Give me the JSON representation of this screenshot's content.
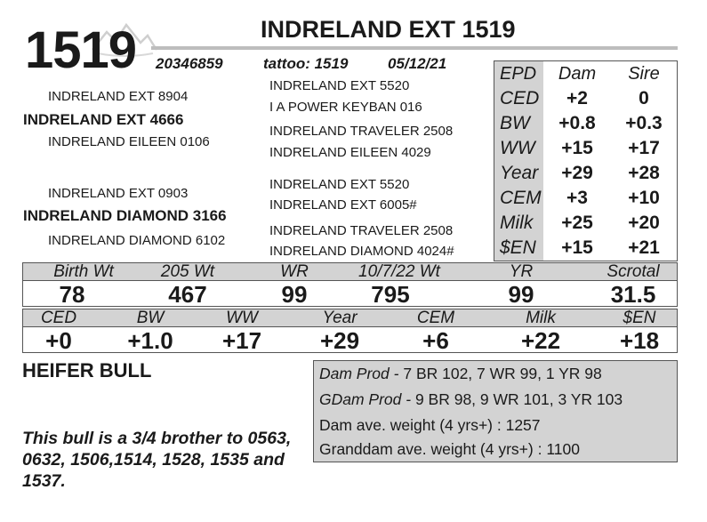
{
  "header": {
    "lot": "1519",
    "title": "INDRELAND EXT 1519",
    "registration": "20346859",
    "tattoo": "tattoo: 1519",
    "birth_date": "05/12/21"
  },
  "pedigree": {
    "sire": "INDRELAND EXT 4666",
    "sire_sire": "INDRELAND EXT 8904",
    "sire_dam": "INDRELAND EILEEN 0106",
    "sss": "INDRELAND EXT 5520",
    "ssd": "I A POWER KEYBAN 016",
    "sds": "INDRELAND TRAVELER 2508",
    "sdd": "INDRELAND EILEEN 4029",
    "dam": "INDRELAND DIAMOND 3166",
    "dam_sire": "INDRELAND EXT 0903",
    "dam_dam": "INDRELAND DIAMOND 6102",
    "dss": "INDRELAND EXT 5520",
    "dsd": "INDRELAND EXT 6005#",
    "dds": "INDRELAND TRAVELER 2508",
    "ddd": "INDRELAND DIAMOND 4024#"
  },
  "epd_table": {
    "headers": [
      "EPD",
      "Dam",
      "Sire"
    ],
    "rows": [
      {
        "label": "CED",
        "dam": "+2",
        "sire": "0"
      },
      {
        "label": "BW",
        "dam": "+0.8",
        "sire": "+0.3"
      },
      {
        "label": "WW",
        "dam": "+15",
        "sire": "+17"
      },
      {
        "label": "Year",
        "dam": "+29",
        "sire": "+28"
      },
      {
        "label": "CEM",
        "dam": "+3",
        "sire": "+10"
      },
      {
        "label": "Milk",
        "dam": "+25",
        "sire": "+20"
      },
      {
        "label": "$EN",
        "dam": "+15",
        "sire": "+21"
      }
    ]
  },
  "performance": {
    "headers": [
      "Birth Wt",
      "205 Wt",
      "WR",
      "10/7/22 Wt",
      "YR",
      "Scrotal"
    ],
    "values": [
      "78",
      "467",
      "99",
      "795",
      "99",
      "31.5"
    ]
  },
  "bull_epds": {
    "headers": [
      "CED",
      "BW",
      "WW",
      "Year",
      "CEM",
      "Milk",
      "$EN"
    ],
    "values": [
      "+0",
      "+1.0",
      "+17",
      "+29",
      "+6",
      "+22",
      "+18"
    ]
  },
  "heifer_label": "HEIFER BULL",
  "note": "This bull is a 3/4 brother to 0563, 0632, 1506,1514, 1528, 1535 and 1537.",
  "production": {
    "dam_prod_label": "Dam Prod -",
    "dam_prod": "7 BR 102, 7 WR 99, 1 YR 98",
    "gdam_prod_label": "GDam Prod -",
    "gdam_prod": "9 BR 98, 9 WR 101, 3 YR 103",
    "dam_ave": "Dam ave. weight (4 yrs+) : 1257",
    "granddam_ave": "Granddam ave. weight (4 yrs+) : 1100"
  },
  "colors": {
    "shade": "#d3d3d3",
    "rule": "#bdbdbd",
    "text": "#1a1a1a"
  }
}
